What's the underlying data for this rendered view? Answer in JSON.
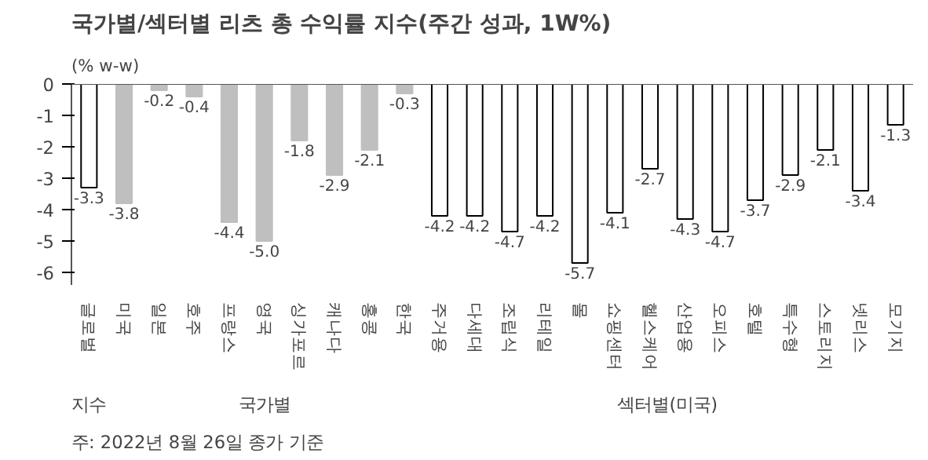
{
  "chart_data": {
    "type": "bar",
    "title": "국가별/섹터별 리츠 총 수익률 지수(주간 성과, 1W%)",
    "ylabel": "(% w-w)",
    "categories": [
      "글로벌",
      "미국",
      "일본",
      "호주",
      "프랑스",
      "영국",
      "싱가포르",
      "캐나다",
      "홍콩",
      "한국",
      "주거용",
      "다세대",
      "조립식",
      "리테일",
      "몰",
      "쇼핑센터",
      "헬스케어",
      "산업용",
      "오피스",
      "호텔",
      "특수형",
      "스토리지",
      "넷리스",
      "모기지"
    ],
    "values": [
      -3.3,
      -3.8,
      -0.2,
      -0.4,
      -4.4,
      -5.0,
      -1.8,
      -2.9,
      -2.1,
      -0.3,
      -4.2,
      -4.2,
      -4.7,
      -4.2,
      -5.7,
      -4.1,
      -2.7,
      -4.3,
      -4.7,
      -3.7,
      -2.9,
      -2.1,
      -3.4,
      -1.3
    ],
    "colors": [
      "#ffffff",
      "#bfbfbf",
      "#bfbfbf",
      "#bfbfbf",
      "#bfbfbf",
      "#bfbfbf",
      "#bfbfbf",
      "#bfbfbf",
      "#bfbfbf",
      "#bfbfbf",
      "#ffffff",
      "#ffffff",
      "#ffffff",
      "#ffffff",
      "#ffffff",
      "#ffffff",
      "#ffffff",
      "#ffffff",
      "#ffffff",
      "#ffffff",
      "#ffffff",
      "#ffffff",
      "#ffffff",
      "#ffffff"
    ],
    "ylim": [
      -6.4,
      0
    ],
    "yticks": [
      0,
      -1,
      -2,
      -3,
      -4,
      -5,
      -6
    ],
    "value_labels": [
      "-3.3",
      "-3.8",
      "-0.2",
      "-0.4",
      "-4.4",
      "-5.0",
      "-1.8",
      "-2.9",
      "-2.1",
      "-0.3",
      "-4.2",
      "-4.2",
      "-4.7",
      "-4.2",
      "-5.7",
      "-4.1",
      "-2.7",
      "-4.3",
      "-4.7",
      "-3.7",
      "-2.9",
      "-2.1",
      "-3.4",
      "-1.3"
    ],
    "grid": false,
    "annotations": [
      "지수",
      "국가별",
      "섹터별(미국)",
      "주: 2022년 8월 26일 종가 기준"
    ]
  }
}
